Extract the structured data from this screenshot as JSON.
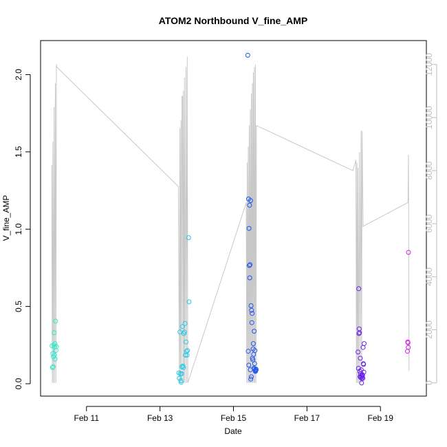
{
  "chart_data": {
    "type": "scatter",
    "title": "ATOM2 Northbound V_fine_AMP",
    "xlabel": "Date",
    "ylabel": "V_fine_AMP",
    "xlim": [
      "2018-02-09T18:00",
      "2018-02-20T06:00"
    ],
    "ylim": [
      -0.08,
      2.22
    ],
    "y2lim": [
      -500,
      12900
    ],
    "x_ticks": [
      {
        "date": "2018-02-11",
        "label": "Feb 11"
      },
      {
        "date": "2018-02-13",
        "label": "Feb 13"
      },
      {
        "date": "2018-02-15",
        "label": "Feb 15"
      },
      {
        "date": "2018-02-17",
        "label": "Feb 17"
      },
      {
        "date": "2018-02-19",
        "label": "Feb 19"
      }
    ],
    "y_ticks": [
      "0.0",
      "0.5",
      "1.0",
      "1.5",
      "2.0"
    ],
    "y2_ticks": [
      "0",
      "2000",
      "4000",
      "6000",
      "8000",
      "10000",
      "12000"
    ],
    "colors": {
      "secondary_line": "#c8c8c8",
      "axis": "#000000",
      "right_axis": "#bdbdbd"
    },
    "points": [
      {
        "x": "2018-02-10T01:30",
        "y": 0.245,
        "color": "#2ee8c8"
      },
      {
        "x": "2018-02-10T01:50",
        "y": 0.105,
        "color": "#2ee8c8"
      },
      {
        "x": "2018-02-10T02:00",
        "y": 0.195,
        "color": "#2ee8c8"
      },
      {
        "x": "2018-02-10T02:10",
        "y": 0.11,
        "color": "#2ee8c8"
      },
      {
        "x": "2018-02-10T02:20",
        "y": 0.175,
        "color": "#2ee8c8"
      },
      {
        "x": "2018-02-10T02:40",
        "y": 0.25,
        "color": "#2ee8c8"
      },
      {
        "x": "2018-02-10T02:50",
        "y": 0.33,
        "color": "#2ee8c8"
      },
      {
        "x": "2018-02-10T03:00",
        "y": 0.185,
        "color": "#2ee8c8"
      },
      {
        "x": "2018-02-10T03:10",
        "y": 0.24,
        "color": "#2ee8c8"
      },
      {
        "x": "2018-02-10T03:20",
        "y": 0.26,
        "color": "#2ee8c8"
      },
      {
        "x": "2018-02-10T03:30",
        "y": 0.16,
        "color": "#2ee8c8"
      },
      {
        "x": "2018-02-10T03:50",
        "y": 0.405,
        "color": "#2ee8c8"
      },
      {
        "x": "2018-02-10T04:00",
        "y": 0.215,
        "color": "#2ee8c8"
      },
      {
        "x": "2018-02-10T04:20",
        "y": 0.24,
        "color": "#2ee8c8"
      },
      {
        "x": "2018-02-13T12:20",
        "y": 0.07,
        "color": "#22c8e6"
      },
      {
        "x": "2018-02-13T12:40",
        "y": 0.035,
        "color": "#22c8e6"
      },
      {
        "x": "2018-02-13T13:00",
        "y": 0.335,
        "color": "#22c8e6"
      },
      {
        "x": "2018-02-13T13:20",
        "y": 0.065,
        "color": "#22c8e6"
      },
      {
        "x": "2018-02-13T13:40",
        "y": 0.02,
        "color": "#22c8e6"
      },
      {
        "x": "2018-02-13T13:50",
        "y": 0.01,
        "color": "#22c8e6"
      },
      {
        "x": "2018-02-13T14:10",
        "y": 0.065,
        "color": "#22c8e6"
      },
      {
        "x": "2018-02-13T14:20",
        "y": 0.11,
        "color": "#22c8e6"
      },
      {
        "x": "2018-02-13T14:40",
        "y": 0.37,
        "color": "#22c8e6"
      },
      {
        "x": "2018-02-13T15:00",
        "y": 0.115,
        "color": "#22c8e6"
      },
      {
        "x": "2018-02-13T15:20",
        "y": 0.105,
        "color": "#22c8e6"
      },
      {
        "x": "2018-02-13T15:40",
        "y": 0.325,
        "color": "#22c8e6"
      },
      {
        "x": "2018-02-13T16:00",
        "y": 0.335,
        "color": "#22c8e6"
      },
      {
        "x": "2018-02-13T16:20",
        "y": 0.39,
        "color": "#22c8e6"
      },
      {
        "x": "2018-02-13T16:40",
        "y": 0.185,
        "color": "#22c8e6"
      },
      {
        "x": "2018-02-13T17:00",
        "y": 0.27,
        "color": "#22c8e6"
      },
      {
        "x": "2018-02-13T17:20",
        "y": 0.21,
        "color": "#22c8e6"
      },
      {
        "x": "2018-02-13T17:40",
        "y": 0.185,
        "color": "#22c8e6"
      },
      {
        "x": "2018-02-13T18:00",
        "y": 0.215,
        "color": "#22c8e6"
      },
      {
        "x": "2018-02-13T18:40",
        "y": 0.945,
        "color": "#22c8e6"
      },
      {
        "x": "2018-02-13T19:00",
        "y": 0.53,
        "color": "#22c8e6"
      },
      {
        "x": "2018-02-15T09:20",
        "y": 2.125,
        "color": "#1e55f0"
      },
      {
        "x": "2018-02-15T09:40",
        "y": 0.21,
        "color": "#1e55f0"
      },
      {
        "x": "2018-02-15T09:50",
        "y": 1.195,
        "color": "#1e55f0"
      },
      {
        "x": "2018-02-15T10:00",
        "y": 0.12,
        "color": "#1e55f0"
      },
      {
        "x": "2018-02-15T10:10",
        "y": 1.005,
        "color": "#1e55f0"
      },
      {
        "x": "2018-02-15T10:20",
        "y": 0.765,
        "color": "#1e55f0"
      },
      {
        "x": "2018-02-15T10:30",
        "y": 1.155,
        "color": "#1e55f0"
      },
      {
        "x": "2018-02-15T10:40",
        "y": 0.685,
        "color": "#1e55f0"
      },
      {
        "x": "2018-02-15T10:50",
        "y": 0.77,
        "color": "#1e55f0"
      },
      {
        "x": "2018-02-15T11:00",
        "y": 0.09,
        "color": "#1e55f0"
      },
      {
        "x": "2018-02-15T11:10",
        "y": 1.185,
        "color": "#1e55f0"
      },
      {
        "x": "2018-02-15T11:20",
        "y": 0.03,
        "color": "#1e55f0"
      },
      {
        "x": "2018-02-15T11:30",
        "y": 0.505,
        "color": "#1e55f0"
      },
      {
        "x": "2018-02-15T11:40",
        "y": 0.045,
        "color": "#1e55f0"
      },
      {
        "x": "2018-02-15T11:50",
        "y": 0.475,
        "color": "#1e55f0"
      },
      {
        "x": "2018-02-15T12:00",
        "y": 0.395,
        "color": "#1e55f0"
      },
      {
        "x": "2018-02-15T12:10",
        "y": 0.455,
        "color": "#1e55f0"
      },
      {
        "x": "2018-02-15T12:20",
        "y": 0.165,
        "color": "#1e55f0"
      },
      {
        "x": "2018-02-15T12:40",
        "y": 0.155,
        "color": "#1e55f0"
      },
      {
        "x": "2018-02-15T12:50",
        "y": 0.225,
        "color": "#1e55f0"
      },
      {
        "x": "2018-02-15T13:00",
        "y": 0.26,
        "color": "#1e55f0"
      },
      {
        "x": "2018-02-15T13:10",
        "y": 0.19,
        "color": "#1e55f0"
      },
      {
        "x": "2018-02-15T13:20",
        "y": 0.1,
        "color": "#1e55f0"
      },
      {
        "x": "2018-02-15T13:30",
        "y": 0.34,
        "color": "#1e55f0"
      },
      {
        "x": "2018-02-15T13:40",
        "y": 0.095,
        "color": "#1e55f0"
      },
      {
        "x": "2018-02-15T13:50",
        "y": 0.13,
        "color": "#1e55f0"
      },
      {
        "x": "2018-02-15T14:00",
        "y": 0.215,
        "color": "#1e55f0"
      },
      {
        "x": "2018-02-15T14:10",
        "y": 0.085,
        "color": "#1e55f0"
      },
      {
        "x": "2018-02-15T14:20",
        "y": 0.08,
        "color": "#1e55f0"
      },
      {
        "x": "2018-02-15T14:30",
        "y": 0.085,
        "color": "#1e55f0"
      },
      {
        "x": "2018-02-15T14:40",
        "y": 0.095,
        "color": "#1e55f0"
      },
      {
        "x": "2018-02-15T14:50",
        "y": 0.09,
        "color": "#1e55f0"
      },
      {
        "x": "2018-02-18T09:20",
        "y": 0.205,
        "color": "#6a22ea"
      },
      {
        "x": "2018-02-18T09:40",
        "y": 0.1,
        "color": "#6a22ea"
      },
      {
        "x": "2018-02-18T09:50",
        "y": 0.615,
        "color": "#6a22ea"
      },
      {
        "x": "2018-02-18T10:00",
        "y": 0.325,
        "color": "#6a22ea"
      },
      {
        "x": "2018-02-18T10:10",
        "y": 0.355,
        "color": "#6a22ea"
      },
      {
        "x": "2018-02-18T10:20",
        "y": 0.33,
        "color": "#6a22ea"
      },
      {
        "x": "2018-02-18T10:30",
        "y": 0.08,
        "color": "#6a22ea"
      },
      {
        "x": "2018-02-18T10:40",
        "y": 0.045,
        "color": "#6a22ea"
      },
      {
        "x": "2018-02-18T10:50",
        "y": 0.165,
        "color": "#6a22ea"
      },
      {
        "x": "2018-02-18T11:00",
        "y": 0.065,
        "color": "#6a22ea"
      },
      {
        "x": "2018-02-18T11:10",
        "y": 0.04,
        "color": "#6a22ea"
      },
      {
        "x": "2018-02-18T11:20",
        "y": 0.05,
        "color": "#6a22ea"
      },
      {
        "x": "2018-02-18T11:30",
        "y": 0.09,
        "color": "#6a22ea"
      },
      {
        "x": "2018-02-18T11:40",
        "y": 0.005,
        "color": "#6a22ea"
      },
      {
        "x": "2018-02-18T11:50",
        "y": 0.035,
        "color": "#6a22ea"
      },
      {
        "x": "2018-02-18T12:00",
        "y": 0.06,
        "color": "#6a22ea"
      },
      {
        "x": "2018-02-18T12:10",
        "y": 0.045,
        "color": "#6a22ea"
      },
      {
        "x": "2018-02-18T12:20",
        "y": 0.055,
        "color": "#6a22ea"
      },
      {
        "x": "2018-02-18T12:30",
        "y": 0.035,
        "color": "#6a22ea"
      },
      {
        "x": "2018-02-18T12:40",
        "y": 0.235,
        "color": "#6a22ea"
      },
      {
        "x": "2018-02-18T12:50",
        "y": 0.13,
        "color": "#6a22ea"
      },
      {
        "x": "2018-02-18T13:00",
        "y": 0.125,
        "color": "#6a22ea"
      },
      {
        "x": "2018-02-18T13:10",
        "y": 0.075,
        "color": "#6a22ea"
      },
      {
        "x": "2018-02-18T13:20",
        "y": 0.26,
        "color": "#6a22ea"
      },
      {
        "x": "2018-02-19T17:40",
        "y": 0.21,
        "color": "#d81ee6"
      },
      {
        "x": "2018-02-19T17:50",
        "y": 0.27,
        "color": "#d81ee6"
      },
      {
        "x": "2018-02-19T18:00",
        "y": 0.265,
        "color": "#d81ee6"
      },
      {
        "x": "2018-02-19T18:10",
        "y": 0.235,
        "color": "#d81ee6"
      },
      {
        "x": "2018-02-19T18:20",
        "y": 0.85,
        "color": "#d81ee6"
      }
    ],
    "secondary_line": [
      [
        "2018-02-10T01:20",
        8200
      ],
      [
        "2018-02-10T01:40",
        0
      ],
      [
        "2018-02-10T02:00",
        9100
      ],
      [
        "2018-02-10T02:20",
        0
      ],
      [
        "2018-02-10T02:50",
        10400
      ],
      [
        "2018-02-10T03:10",
        0
      ],
      [
        "2018-02-10T03:40",
        11300
      ],
      [
        "2018-02-10T04:00",
        0
      ],
      [
        "2018-02-10T04:20",
        12000
      ],
      [
        "2018-02-10T04:40",
        11900
      ],
      [
        "2018-02-13T12:00",
        7400
      ],
      [
        "2018-02-13T12:40",
        0
      ],
      [
        "2018-02-13T13:00",
        9600
      ],
      [
        "2018-02-13T13:20",
        0
      ],
      [
        "2018-02-13T13:40",
        9900
      ],
      [
        "2018-02-13T14:00",
        0
      ],
      [
        "2018-02-13T14:20",
        10800
      ],
      [
        "2018-02-13T14:40",
        10800
      ],
      [
        "2018-02-13T15:00",
        0
      ],
      [
        "2018-02-13T15:20",
        11000
      ],
      [
        "2018-02-13T15:40",
        0
      ],
      [
        "2018-02-13T16:00",
        11500
      ],
      [
        "2018-02-13T16:20",
        0
      ],
      [
        "2018-02-13T17:00",
        11900
      ],
      [
        "2018-02-13T17:20",
        0
      ],
      [
        "2018-02-13T17:50",
        12300
      ],
      [
        "2018-02-13T18:10",
        0
      ],
      [
        "2018-02-15T08:20",
        6800
      ],
      [
        "2018-02-15T08:40",
        0
      ],
      [
        "2018-02-15T09:00",
        8300
      ],
      [
        "2018-02-15T09:20",
        0
      ],
      [
        "2018-02-15T09:40",
        8900
      ],
      [
        "2018-02-15T10:00",
        0
      ],
      [
        "2018-02-15T10:20",
        9700
      ],
      [
        "2018-02-15T10:40",
        0
      ],
      [
        "2018-02-15T11:00",
        10300
      ],
      [
        "2018-02-15T11:20",
        0
      ],
      [
        "2018-02-15T11:40",
        10900
      ],
      [
        "2018-02-15T12:00",
        0
      ],
      [
        "2018-02-15T12:20",
        11300
      ],
      [
        "2018-02-15T12:40",
        0
      ],
      [
        "2018-02-15T13:00",
        11700
      ],
      [
        "2018-02-15T13:20",
        0
      ],
      [
        "2018-02-15T13:40",
        11900
      ],
      [
        "2018-02-15T14:00",
        0
      ],
      [
        "2018-02-15T14:20",
        12000
      ],
      [
        "2018-02-15T14:40",
        0
      ],
      [
        "2018-02-15T15:00",
        9700
      ],
      [
        "2018-02-18T06:00",
        8000
      ],
      [
        "2018-02-18T08:00",
        8400
      ],
      [
        "2018-02-18T08:20",
        0
      ],
      [
        "2018-02-18T08:40",
        8300
      ],
      [
        "2018-02-18T09:00",
        0
      ],
      [
        "2018-02-18T09:20",
        8100
      ],
      [
        "2018-02-18T09:40",
        0
      ],
      [
        "2018-02-18T10:20",
        8700
      ],
      [
        "2018-02-18T10:40",
        0
      ],
      [
        "2018-02-18T11:20",
        9500
      ],
      [
        "2018-02-18T11:40",
        0
      ],
      [
        "2018-02-18T12:00",
        9500
      ],
      [
        "2018-02-18T12:40",
        5900
      ],
      [
        "2018-02-19T18:00",
        6800
      ],
      [
        "2018-02-19T18:20",
        8600
      ],
      [
        "2018-02-19T18:40",
        450
      ]
    ]
  }
}
